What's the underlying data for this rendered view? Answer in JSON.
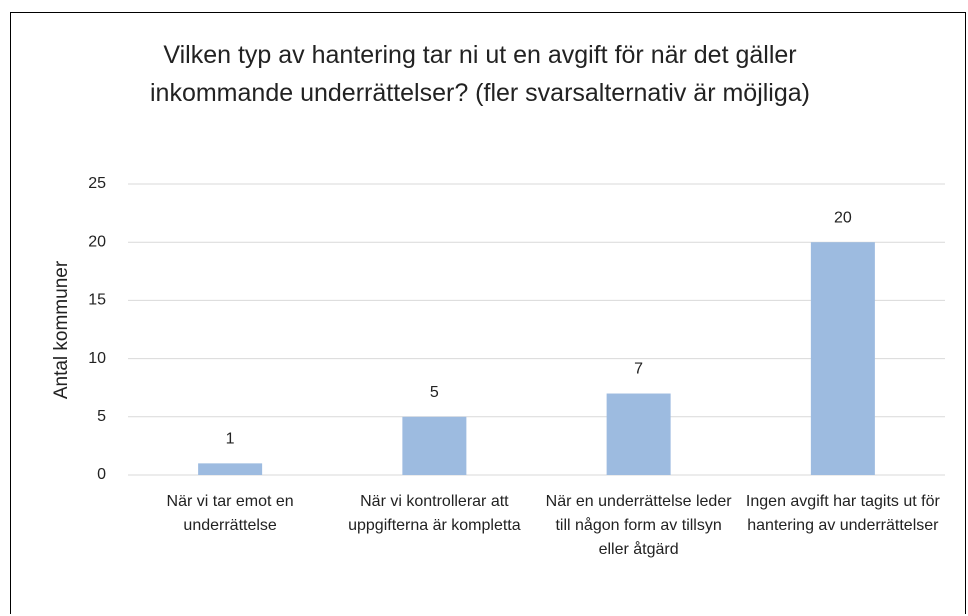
{
  "chart_data": {
    "type": "bar",
    "title": "Vilken typ av hantering tar ni ut en avgift för när det gäller inkommande underrättelser? (fler svarsalternativ är möjliga)",
    "ylabel": "Antal kommuner",
    "categories": [
      "När vi tar emot en underrättelse",
      "När vi kontrollerar att uppgifterna är kompletta",
      "När en underrättelse leder till någon form av tillsyn eller åtgärd",
      "Ingen avgift har tagits ut för hantering av underrättelser"
    ],
    "values": [
      1,
      5,
      7,
      20
    ],
    "color": "#9dbbe0",
    "ylim": [
      0,
      25
    ],
    "yticks": [
      0,
      5,
      10,
      15,
      20,
      25
    ],
    "grid": true
  }
}
